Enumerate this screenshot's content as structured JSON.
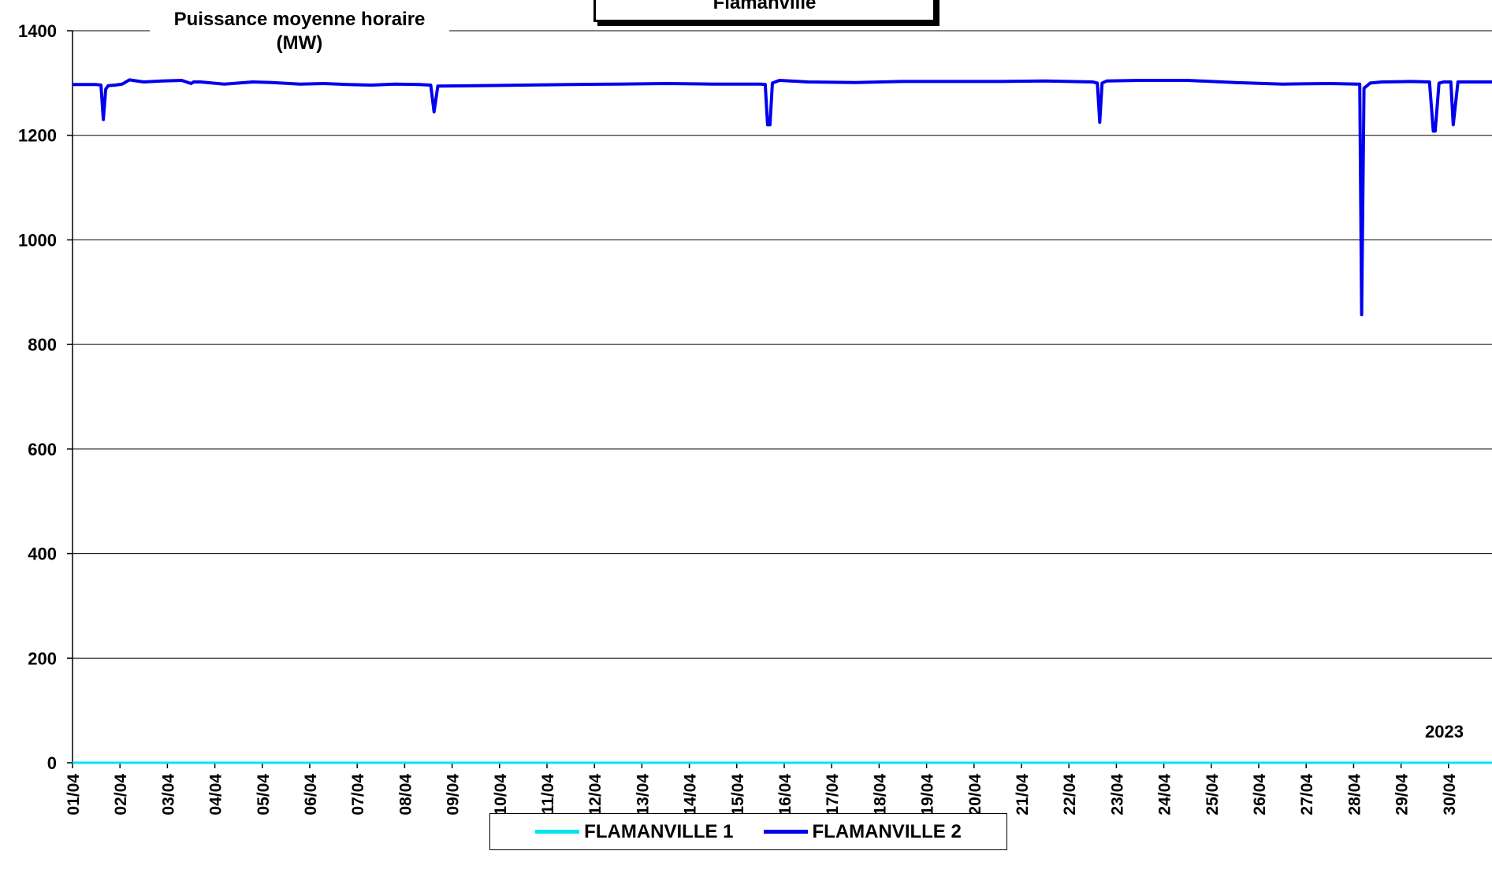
{
  "chart_data": {
    "type": "line",
    "title": "Flamanville",
    "ylabel": "Puissance moyenne horaire (MW)",
    "ylabel_line1": "Puissance moyenne horaire",
    "ylabel_line2": "(MW)",
    "year_label": "2023",
    "ylim": [
      0,
      1400
    ],
    "yticks": [
      0,
      200,
      400,
      600,
      800,
      1000,
      1200,
      1400
    ],
    "xlim": [
      1,
      31
    ],
    "categories": [
      "01/04",
      "02/04",
      "03/04",
      "04/04",
      "05/04",
      "06/04",
      "07/04",
      "08/04",
      "09/04",
      "10/04",
      "11/04",
      "12/04",
      "13/04",
      "14/04",
      "15/04",
      "16/04",
      "17/04",
      "18/04",
      "19/04",
      "20/04",
      "21/04",
      "22/04",
      "23/04",
      "24/04",
      "25/04",
      "26/04",
      "27/04",
      "28/04",
      "29/04",
      "30/04"
    ],
    "grid": true,
    "legend_position": "bottom",
    "series": [
      {
        "name": "FLAMANVILLE 1",
        "color": "#00e5ee",
        "x": [
          1,
          31
        ],
        "values": [
          0,
          0
        ]
      },
      {
        "name": "FLAMANVILLE 2",
        "color": "#0000ee",
        "x": [
          1.0,
          1.5,
          1.6,
          1.65,
          1.7,
          1.75,
          1.9,
          2.05,
          2.2,
          2.5,
          2.9,
          3.3,
          3.5,
          3.55,
          3.7,
          4.2,
          4.8,
          5.2,
          5.8,
          6.3,
          6.8,
          7.3,
          7.8,
          8.3,
          8.55,
          8.62,
          8.7,
          9.5,
          10.5,
          11.5,
          12.5,
          13.5,
          14.5,
          15.5,
          15.6,
          15.65,
          15.7,
          15.75,
          15.9,
          16.5,
          17.5,
          18.5,
          19.5,
          20.5,
          21.5,
          22.5,
          22.6,
          22.65,
          22.7,
          22.8,
          23.5,
          24.5,
          25.5,
          26.5,
          27.5,
          28.08,
          28.13,
          28.17,
          28.22,
          28.35,
          28.6,
          29.2,
          29.6,
          29.68,
          29.72,
          29.8,
          29.9,
          30.05,
          30.1,
          30.2,
          31.0
        ],
        "values": [
          1297,
          1297,
          1296,
          1230,
          1288,
          1295,
          1296,
          1298,
          1306,
          1302,
          1304,
          1305,
          1299,
          1302,
          1302,
          1298,
          1302,
          1301,
          1298,
          1299,
          1297,
          1296,
          1298,
          1297,
          1296,
          1245,
          1294,
          1295,
          1296,
          1297,
          1298,
          1299,
          1298,
          1298,
          1297,
          1220,
          1220,
          1300,
          1305,
          1302,
          1301,
          1303,
          1303,
          1303,
          1304,
          1302,
          1300,
          1225,
          1300,
          1304,
          1305,
          1305,
          1301,
          1298,
          1299,
          1298,
          1298,
          857,
          1290,
          1300,
          1302,
          1303,
          1302,
          1208,
          1208,
          1300,
          1302,
          1302,
          1220,
          1302,
          1302
        ]
      }
    ]
  }
}
